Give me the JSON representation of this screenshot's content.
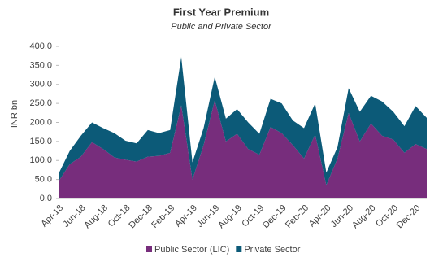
{
  "chart_data": {
    "type": "stacked_area",
    "title": "First Year Premium",
    "subtitle": "Public and Private Sector",
    "y_label": "INR bn",
    "categories": [
      "Apr-18",
      null,
      "Jun-18",
      null,
      "Aug-18",
      null,
      "Oct-18",
      null,
      "Dec-18",
      null,
      "Feb-19",
      null,
      "Apr-19",
      null,
      "Jun-19",
      null,
      "Aug-19",
      null,
      "Oct-19",
      null,
      "Dec-19",
      null,
      "Feb-20",
      null,
      "Apr-20",
      null,
      "Jun-20",
      null,
      "Aug-20",
      null,
      "Oct-20",
      null,
      "Dec-20",
      null
    ],
    "series": [
      {
        "name": "Public Sector (LIC)",
        "color": "#772d7c",
        "values": [
          45,
          90,
          110,
          148,
          130,
          108,
          102,
          97,
          110,
          112,
          120,
          245,
          50,
          140,
          258,
          150,
          170,
          130,
          115,
          188,
          172,
          140,
          105,
          168,
          35,
          105,
          225,
          150,
          197,
          165,
          155,
          120,
          143,
          130
        ]
      },
      {
        "name": "Private Sector",
        "color": "#0c5a78",
        "values": [
          20,
          35,
          55,
          52,
          55,
          64,
          50,
          48,
          70,
          60,
          60,
          127,
          45,
          45,
          62,
          60,
          65,
          70,
          55,
          74,
          78,
          65,
          80,
          82,
          33,
          30,
          65,
          78,
          73,
          90,
          73,
          70,
          100,
          82
        ]
      }
    ],
    "ylim": [
      0,
      400
    ],
    "yticks": [
      {
        "value": 0,
        "label": "0.0"
      },
      {
        "value": 50,
        "label": "50.0"
      },
      {
        "value": 100,
        "label": "100.0"
      },
      {
        "value": 150,
        "label": "150.0"
      },
      {
        "value": 200,
        "label": "200.0"
      },
      {
        "value": 250,
        "label": "250.0"
      },
      {
        "value": 300,
        "label": "300.0"
      },
      {
        "value": 350,
        "label": "350.0"
      },
      {
        "value": 400,
        "label": "400.0"
      }
    ]
  }
}
